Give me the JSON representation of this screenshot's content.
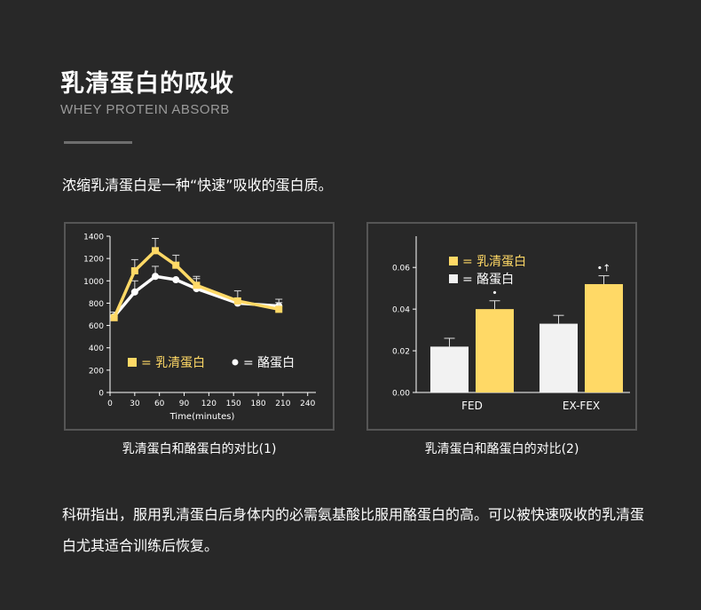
{
  "header": {
    "title": "乳清蛋白的吸收",
    "subtitle": "WHEY PROTEIN ABSORB"
  },
  "intro": "浓缩乳清蛋白是一种“快速”吸收的蛋白质。",
  "body_text": "科研指出，服用乳清蛋白后身体内的必需氨基酸比服用酪蛋白的高。可以被快速吸收的乳清蛋白尤其适合训练后恢复。",
  "colors": {
    "whey": "#ffd966",
    "casein": "#ffffff",
    "axis": "#ffffff",
    "panel_border": "#555555"
  },
  "chart_data": [
    {
      "type": "line",
      "caption": "乳清蛋白和酪蛋白的对比(1)",
      "xlabel": "Time(minutes)",
      "ylabel": "",
      "x": [
        0,
        30,
        60,
        90,
        120,
        150,
        180,
        210,
        240
      ],
      "x_ticks": [
        "0",
        "30",
        "60",
        "90",
        "120",
        "150",
        "180",
        "210",
        "240"
      ],
      "y_ticks": [
        "0",
        "200",
        "400",
        "600",
        "800",
        "1000",
        "1200",
        "1400"
      ],
      "xlim": [
        0,
        250
      ],
      "ylim": [
        0,
        1400
      ],
      "series": [
        {
          "name": "= 乳清蛋白",
          "color": "#ffd966",
          "marker": "square",
          "points": [
            [
              5,
              670
            ],
            [
              30,
              1090
            ],
            [
              55,
              1270
            ],
            [
              80,
              1140
            ],
            [
              105,
              960
            ],
            [
              155,
              820
            ],
            [
              205,
              745
            ]
          ],
          "errors": [
            50,
            100,
            110,
            90,
            80,
            90,
            60
          ]
        },
        {
          "name": "= 酪蛋白",
          "color": "#ffffff",
          "marker": "circle",
          "points": [
            [
              5,
              680
            ],
            [
              30,
              900
            ],
            [
              55,
              1040
            ],
            [
              80,
              1010
            ],
            [
              105,
              930
            ],
            [
              155,
              800
            ],
            [
              205,
              775
            ]
          ],
          "errors": [
            40,
            100,
            90,
            0,
            90,
            0,
            60
          ]
        }
      ],
      "legend": "bottom-left"
    },
    {
      "type": "bar",
      "caption": "乳清蛋白和酪蛋白的对比(2)",
      "categories": [
        "FED",
        "EX-FEX"
      ],
      "y_ticks": [
        "0.00",
        "0.02",
        "0.04",
        "0.06"
      ],
      "ylim": [
        0,
        0.075
      ],
      "series": [
        {
          "name": "= 酪蛋白",
          "color": "#f2f2f2",
          "values": [
            0.022,
            0.033
          ],
          "errors": [
            0.004,
            0.004
          ],
          "annotations": [
            "",
            ""
          ]
        },
        {
          "name": "= 乳清蛋白",
          "color": "#ffd966",
          "values": [
            0.04,
            0.052
          ],
          "errors": [
            0.004,
            0.004
          ],
          "annotations": [
            "•",
            "•↑"
          ]
        }
      ],
      "legend": "top-left"
    }
  ]
}
